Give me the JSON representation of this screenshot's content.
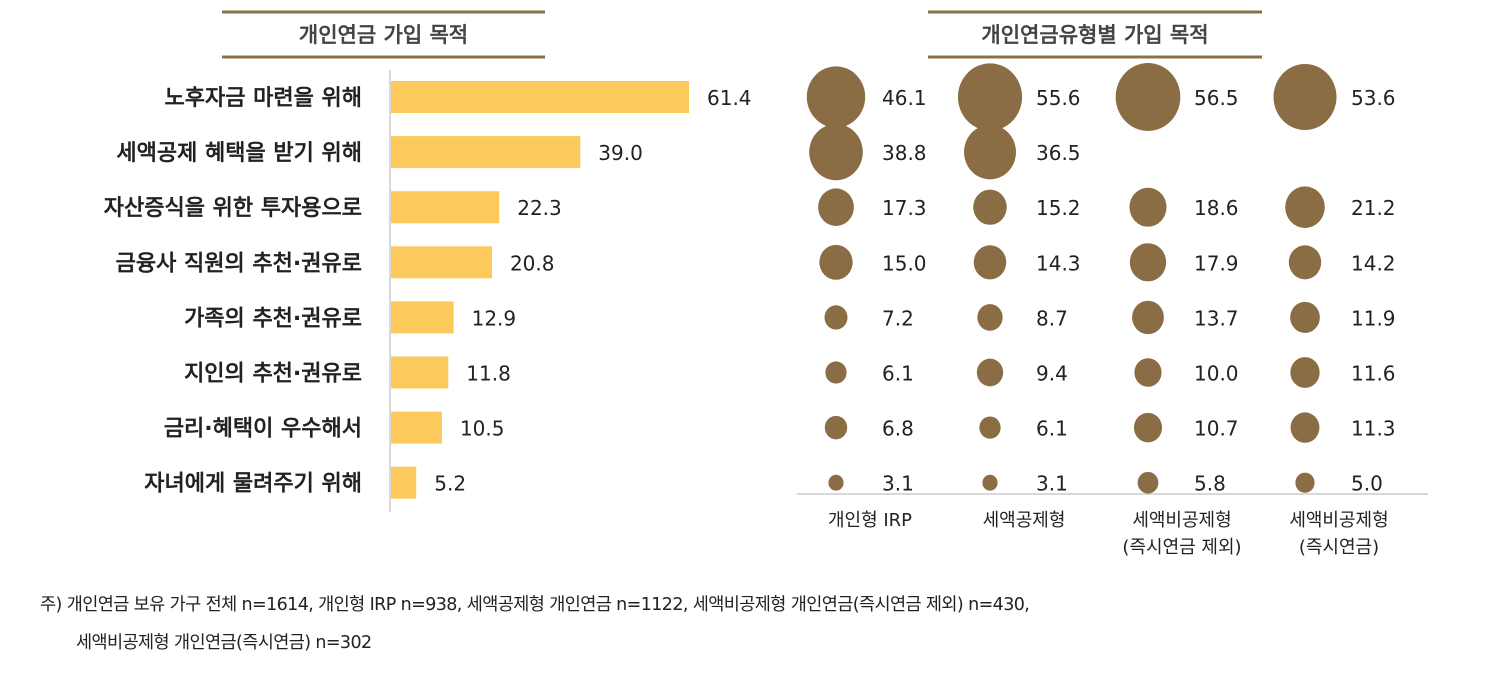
{
  "colors": {
    "bar": "#fcc95c",
    "bubble": "#8a6d45",
    "title_rule": "#8c7045",
    "axis": "#cccccc"
  },
  "chart_data": [
    {
      "type": "bar",
      "orientation": "horizontal",
      "title": "개인연금 가입 목적",
      "categories": [
        "노후자금 마련을 위해",
        "세액공제 혜택을 받기 위해",
        "자산증식을 위한 투자용으로",
        "금융사 직원의 추천·권유로",
        "가족의 추천·권유로",
        "지인의 추천·권유로",
        "금리·혜택이 우수해서",
        "자녀에게 물려주기 위해"
      ],
      "values": [
        61.4,
        39.0,
        22.3,
        20.8,
        12.9,
        11.8,
        10.5,
        5.2
      ],
      "value_labels": [
        "61.4",
        "39.0",
        "22.3",
        "20.8",
        "12.9",
        "11.8",
        "10.5",
        "5.2"
      ]
    },
    {
      "type": "bubble",
      "title": "개인연금유형별 가입 목적",
      "columns": [
        {
          "label": [
            "개인형 IRP"
          ],
          "values": [
            "46.1",
            "38.8",
            "17.3",
            "15.0",
            "7.2",
            "6.1",
            "6.8",
            "3.1"
          ]
        },
        {
          "label": [
            "세액공제형"
          ],
          "values": [
            "55.6",
            "36.5",
            "15.2",
            "14.3",
            "8.7",
            "9.4",
            "6.1",
            "3.1"
          ]
        },
        {
          "label": [
            "세액비공제형",
            "(즉시연금 제외)"
          ],
          "values": [
            "56.5",
            "",
            "18.6",
            "17.9",
            "13.7",
            "10.0",
            "10.7",
            "5.8"
          ]
        },
        {
          "label": [
            "세액비공제형",
            "(즉시연금)"
          ],
          "values": [
            "53.6",
            "",
            "21.2",
            "14.2",
            "11.9",
            "11.6",
            "11.3",
            "5.0"
          ]
        }
      ]
    }
  ],
  "footnote": {
    "line1": "주) 개인연금 보유 가구 전체 n=1614, 개인형 IRP n=938, 세액공제형 개인연금 n=1122, 세액비공제형 개인연금(즉시연금 제외) n=430,",
    "line2": "세액비공제형 개인연금(즉시연금) n=302"
  }
}
